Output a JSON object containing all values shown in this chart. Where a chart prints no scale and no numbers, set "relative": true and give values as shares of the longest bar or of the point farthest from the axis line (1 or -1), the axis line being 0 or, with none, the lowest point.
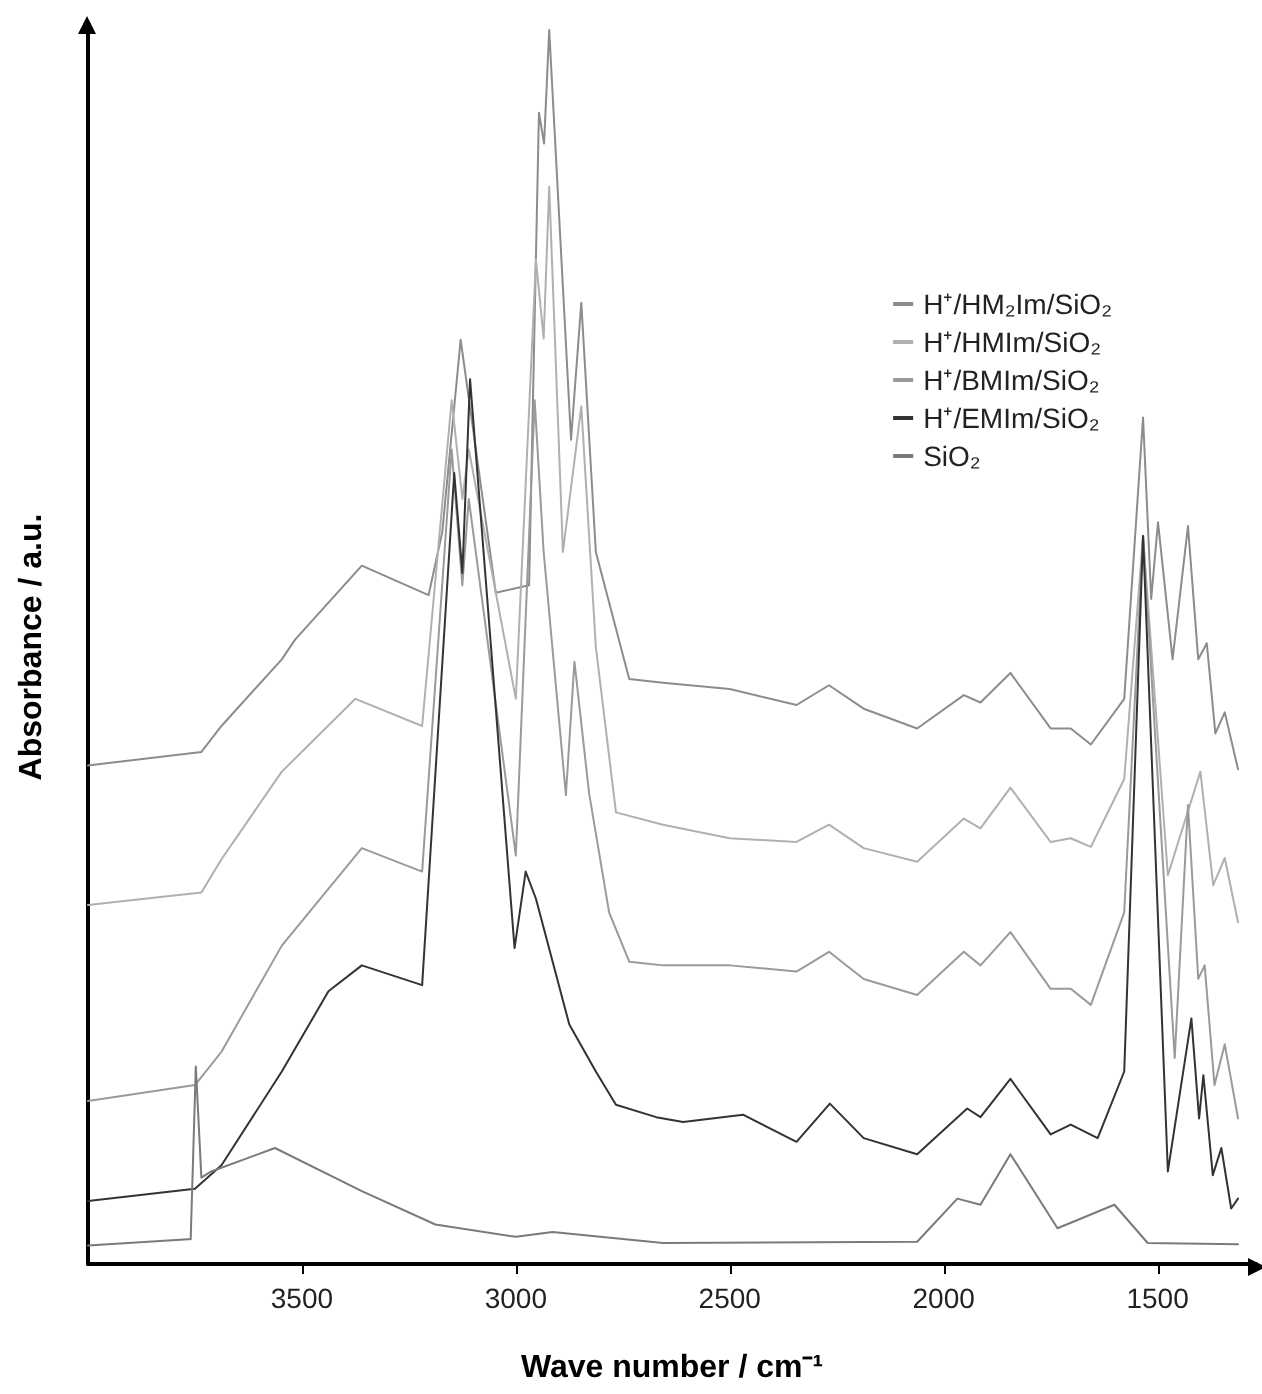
{
  "chart_data": {
    "type": "line",
    "xlabel": "Wave number / cm⁻¹",
    "ylabel": "Absorbance / a.u.",
    "relative": true,
    "xlim": [
      4000,
      1270
    ],
    "xticks": [
      3500,
      3000,
      2500,
      2000,
      1500
    ],
    "legend": "top right",
    "grid": false,
    "marker": "none",
    "line_style": "solid",
    "series": [
      {
        "name": "H⁺/HM₂Im/SiO₂",
        "color": "#8c8c8c",
        "x": [
          4000,
          3735,
          3688,
          3547,
          3516,
          3360,
          3204,
          3172,
          3129,
          3047,
          2969,
          2946,
          2934,
          2922,
          2871,
          2847,
          2813,
          2735,
          2656,
          2500,
          2344,
          2268,
          2187,
          2062,
          1953,
          1914,
          1844,
          1750,
          1703,
          1656,
          1578,
          1534,
          1515,
          1499,
          1465,
          1429,
          1405,
          1385,
          1365,
          1343,
          1312
        ],
        "values": [
          0.404,
          0.415,
          0.436,
          0.49,
          0.506,
          0.566,
          0.542,
          0.593,
          0.749,
          0.544,
          0.55,
          0.933,
          0.908,
          1,
          0.668,
          0.779,
          0.577,
          0.474,
          0.471,
          0.466,
          0.453,
          0.469,
          0.45,
          0.434,
          0.461,
          0.455,
          0.479,
          0.434,
          0.434,
          0.421,
          0.458,
          0.686,
          0.539,
          0.601,
          0.49,
          0.598,
          0.49,
          0.503,
          0.43,
          0.447,
          0.401
        ]
      },
      {
        "name": "H⁺/HMIm/SiO₂",
        "color": "#b0b0b0",
        "x": [
          4000,
          3735,
          3688,
          3547,
          3375,
          3219,
          3150,
          3125,
          3110,
          3000,
          2953,
          2935,
          2922,
          2890,
          2847,
          2813,
          2766,
          2656,
          2500,
          2344,
          2268,
          2187,
          2062,
          1953,
          1914,
          1844,
          1750,
          1703,
          1656,
          1578,
          1534,
          1476,
          1400,
          1370,
          1343,
          1312
        ],
        "values": [
          0.291,
          0.301,
          0.328,
          0.399,
          0.458,
          0.436,
          0.7,
          0.62,
          0.66,
          0.458,
          0.814,
          0.75,
          0.873,
          0.577,
          0.695,
          0.5,
          0.366,
          0.356,
          0.345,
          0.342,
          0.356,
          0.337,
          0.326,
          0.361,
          0.353,
          0.386,
          0.342,
          0.345,
          0.338,
          0.393,
          0.59,
          0.315,
          0.399,
          0.307,
          0.329,
          0.277
        ]
      },
      {
        "name": "H⁺/BMIm/SiO₂",
        "color": "#9a9a9a",
        "x": [
          4000,
          3750,
          3688,
          3547,
          3360,
          3219,
          3150,
          3125,
          3110,
          3000,
          2956,
          2935,
          2883,
          2863,
          2829,
          2782,
          2735,
          2656,
          2500,
          2344,
          2268,
          2187,
          2062,
          1953,
          1914,
          1844,
          1750,
          1703,
          1656,
          1578,
          1534,
          1460,
          1429,
          1405,
          1390,
          1367,
          1343,
          1312
        ],
        "values": [
          0.132,
          0.145,
          0.172,
          0.258,
          0.337,
          0.318,
          0.66,
          0.55,
          0.62,
          0.331,
          0.7,
          0.577,
          0.38,
          0.488,
          0.382,
          0.285,
          0.245,
          0.242,
          0.242,
          0.237,
          0.253,
          0.231,
          0.218,
          0.253,
          0.242,
          0.269,
          0.223,
          0.223,
          0.21,
          0.285,
          0.59,
          0.167,
          0.372,
          0.231,
          0.242,
          0.145,
          0.178,
          0.118
        ]
      },
      {
        "name": "H⁺/EMIm/SiO₂",
        "color": "#333333",
        "x": [
          4000,
          3750,
          3688,
          3547,
          3438,
          3360,
          3219,
          3144,
          3125,
          3107,
          3003,
          2977,
          2953,
          2875,
          2813,
          2766,
          2672,
          2609,
          2469,
          2344,
          2266,
          2187,
          2062,
          1945,
          1914,
          1844,
          1750,
          1703,
          1640,
          1578,
          1534,
          1476,
          1421,
          1403,
          1393,
          1371,
          1351,
          1328,
          1312
        ],
        "values": [
          0.051,
          0.061,
          0.08,
          0.156,
          0.221,
          0.242,
          0.226,
          0.641,
          0.56,
          0.717,
          0.256,
          0.318,
          0.296,
          0.194,
          0.156,
          0.129,
          0.119,
          0.115,
          0.121,
          0.099,
          0.13,
          0.102,
          0.089,
          0.126,
          0.119,
          0.15,
          0.105,
          0.113,
          0.102,
          0.156,
          0.59,
          0.075,
          0.199,
          0.118,
          0.153,
          0.072,
          0.094,
          0.045,
          0.053
        ]
      },
      {
        "name": "SiO₂",
        "color": "#7a7a7a",
        "x": [
          4000,
          3766,
          3760,
          3748,
          3735,
          3712,
          3563,
          3360,
          3188,
          3000,
          2914,
          2656,
          2062,
          1968,
          1914,
          1844,
          1734,
          1601,
          1523,
          1312
        ],
        "values": [
          0.015,
          0.02,
          0.02,
          0.16,
          0.07,
          0.075,
          0.094,
          0.059,
          0.032,
          0.022,
          0.026,
          0.017,
          0.018,
          0.053,
          0.048,
          0.089,
          0.029,
          0.048,
          0.017,
          0.016
        ]
      }
    ]
  }
}
